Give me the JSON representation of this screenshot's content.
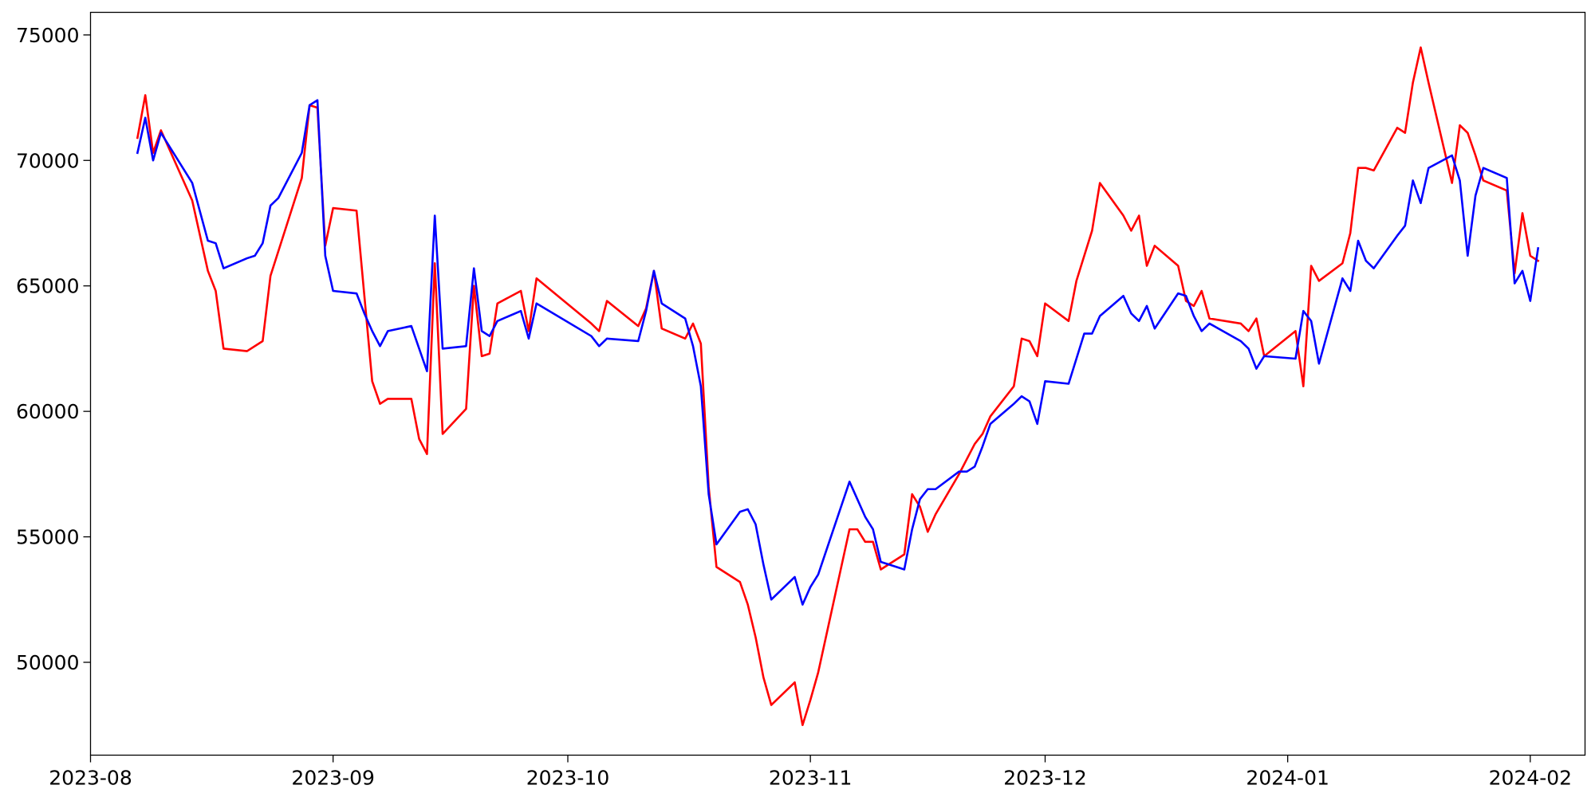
{
  "chart_data": {
    "type": "line",
    "title": "",
    "xlabel": "",
    "ylabel": "",
    "x_axis_type": "date",
    "xlim": [
      "2023-08-01",
      "2024-02-08"
    ],
    "ylim": [
      46300,
      75900
    ],
    "grid": false,
    "legend": "none",
    "x_ticks": [
      {
        "date": "2023-08-01",
        "label": "2023-08"
      },
      {
        "date": "2023-09-01",
        "label": "2023-09"
      },
      {
        "date": "2023-10-01",
        "label": "2023-10"
      },
      {
        "date": "2023-11-01",
        "label": "2023-11"
      },
      {
        "date": "2023-12-01",
        "label": "2023-12"
      },
      {
        "date": "2024-01-01",
        "label": "2024-01"
      },
      {
        "date": "2024-02-01",
        "label": "2024-02"
      }
    ],
    "y_ticks": [
      {
        "value": 50000,
        "label": "50000"
      },
      {
        "value": 55000,
        "label": "55000"
      },
      {
        "value": 60000,
        "label": "60000"
      },
      {
        "value": 65000,
        "label": "65000"
      },
      {
        "value": 70000,
        "label": "70000"
      },
      {
        "value": 75000,
        "label": "75000"
      }
    ],
    "series": [
      {
        "color": "#ff0000",
        "points": [
          [
            "2023-08-07",
            70900
          ],
          [
            "2023-08-08",
            72600
          ],
          [
            "2023-08-09",
            70300
          ],
          [
            "2023-08-10",
            71200
          ],
          [
            "2023-08-14",
            68400
          ],
          [
            "2023-08-16",
            65600
          ],
          [
            "2023-08-17",
            64800
          ],
          [
            "2023-08-18",
            62500
          ],
          [
            "2023-08-21",
            62400
          ],
          [
            "2023-08-23",
            62800
          ],
          [
            "2023-08-24",
            65400
          ],
          [
            "2023-08-28",
            69300
          ],
          [
            "2023-08-29",
            72200
          ],
          [
            "2023-08-30",
            72100
          ],
          [
            "2023-08-31",
            66600
          ],
          [
            "2023-09-01",
            68100
          ],
          [
            "2023-09-04",
            68000
          ],
          [
            "2023-09-06",
            61200
          ],
          [
            "2023-09-07",
            60300
          ],
          [
            "2023-09-08",
            60500
          ],
          [
            "2023-09-11",
            60500
          ],
          [
            "2023-09-12",
            58900
          ],
          [
            "2023-09-13",
            58300
          ],
          [
            "2023-09-14",
            65900
          ],
          [
            "2023-09-15",
            59100
          ],
          [
            "2023-09-18",
            60100
          ],
          [
            "2023-09-19",
            65000
          ],
          [
            "2023-09-20",
            62200
          ],
          [
            "2023-09-21",
            62300
          ],
          [
            "2023-09-22",
            64300
          ],
          [
            "2023-09-25",
            64800
          ],
          [
            "2023-09-26",
            63200
          ],
          [
            "2023-09-27",
            65300
          ],
          [
            "2023-10-04",
            63500
          ],
          [
            "2023-10-05",
            63200
          ],
          [
            "2023-10-06",
            64400
          ],
          [
            "2023-10-10",
            63400
          ],
          [
            "2023-10-11",
            64100
          ],
          [
            "2023-10-12",
            65600
          ],
          [
            "2023-10-13",
            63300
          ],
          [
            "2023-10-16",
            62900
          ],
          [
            "2023-10-17",
            63500
          ],
          [
            "2023-10-18",
            62700
          ],
          [
            "2023-10-19",
            57000
          ],
          [
            "2023-10-20",
            53800
          ],
          [
            "2023-10-23",
            53200
          ],
          [
            "2023-10-24",
            52300
          ],
          [
            "2023-10-25",
            51000
          ],
          [
            "2023-10-26",
            49400
          ],
          [
            "2023-10-27",
            48300
          ],
          [
            "2023-10-30",
            49200
          ],
          [
            "2023-10-31",
            47500
          ],
          [
            "2023-11-01",
            48500
          ],
          [
            "2023-11-02",
            49600
          ],
          [
            "2023-11-06",
            55300
          ],
          [
            "2023-11-07",
            55300
          ],
          [
            "2023-11-08",
            54800
          ],
          [
            "2023-11-09",
            54800
          ],
          [
            "2023-11-10",
            53700
          ],
          [
            "2023-11-13",
            54300
          ],
          [
            "2023-11-14",
            56700
          ],
          [
            "2023-11-15",
            56200
          ],
          [
            "2023-11-16",
            55200
          ],
          [
            "2023-11-17",
            55900
          ],
          [
            "2023-11-20",
            57500
          ],
          [
            "2023-11-21",
            58100
          ],
          [
            "2023-11-22",
            58700
          ],
          [
            "2023-11-23",
            59100
          ],
          [
            "2023-11-24",
            59800
          ],
          [
            "2023-11-27",
            61000
          ],
          [
            "2023-11-28",
            62900
          ],
          [
            "2023-11-29",
            62800
          ],
          [
            "2023-11-30",
            62200
          ],
          [
            "2023-12-01",
            64300
          ],
          [
            "2023-12-04",
            63600
          ],
          [
            "2023-12-05",
            65200
          ],
          [
            "2023-12-06",
            66200
          ],
          [
            "2023-12-07",
            67200
          ],
          [
            "2023-12-08",
            69100
          ],
          [
            "2023-12-11",
            67800
          ],
          [
            "2023-12-12",
            67200
          ],
          [
            "2023-12-13",
            67800
          ],
          [
            "2023-12-14",
            65800
          ],
          [
            "2023-12-15",
            66600
          ],
          [
            "2023-12-18",
            65800
          ],
          [
            "2023-12-19",
            64400
          ],
          [
            "2023-12-20",
            64200
          ],
          [
            "2023-12-21",
            64800
          ],
          [
            "2023-12-22",
            63700
          ],
          [
            "2023-12-26",
            63500
          ],
          [
            "2023-12-27",
            63200
          ],
          [
            "2023-12-28",
            63700
          ],
          [
            "2023-12-29",
            62200
          ],
          [
            "2024-01-02",
            63200
          ],
          [
            "2024-01-03",
            61000
          ],
          [
            "2024-01-04",
            65800
          ],
          [
            "2024-01-05",
            65200
          ],
          [
            "2024-01-08",
            65900
          ],
          [
            "2024-01-09",
            67100
          ],
          [
            "2024-01-10",
            69700
          ],
          [
            "2024-01-11",
            69700
          ],
          [
            "2024-01-12",
            69600
          ],
          [
            "2024-01-15",
            71300
          ],
          [
            "2024-01-16",
            71100
          ],
          [
            "2024-01-17",
            73100
          ],
          [
            "2024-01-18",
            74500
          ],
          [
            "2024-01-19",
            73100
          ],
          [
            "2024-01-22",
            69100
          ],
          [
            "2024-01-23",
            71400
          ],
          [
            "2024-01-24",
            71100
          ],
          [
            "2024-01-25",
            70200
          ],
          [
            "2024-01-26",
            69200
          ],
          [
            "2024-01-29",
            68800
          ],
          [
            "2024-01-30",
            65500
          ],
          [
            "2024-01-31",
            67900
          ],
          [
            "2024-02-01",
            66200
          ],
          [
            "2024-02-02",
            66000
          ]
        ]
      },
      {
        "color": "#0000ff",
        "points": [
          [
            "2023-08-07",
            70300
          ],
          [
            "2023-08-08",
            71700
          ],
          [
            "2023-08-09",
            70000
          ],
          [
            "2023-08-10",
            71100
          ],
          [
            "2023-08-14",
            69100
          ],
          [
            "2023-08-16",
            66800
          ],
          [
            "2023-08-17",
            66700
          ],
          [
            "2023-08-18",
            65700
          ],
          [
            "2023-08-21",
            66100
          ],
          [
            "2023-08-22",
            66200
          ],
          [
            "2023-08-23",
            66700
          ],
          [
            "2023-08-24",
            68200
          ],
          [
            "2023-08-25",
            68500
          ],
          [
            "2023-08-28",
            70300
          ],
          [
            "2023-08-29",
            72200
          ],
          [
            "2023-08-30",
            72400
          ],
          [
            "2023-08-31",
            66200
          ],
          [
            "2023-09-01",
            64800
          ],
          [
            "2023-09-04",
            64700
          ],
          [
            "2023-09-05",
            63900
          ],
          [
            "2023-09-06",
            63200
          ],
          [
            "2023-09-07",
            62600
          ],
          [
            "2023-09-08",
            63200
          ],
          [
            "2023-09-11",
            63400
          ],
          [
            "2023-09-13",
            61600
          ],
          [
            "2023-09-14",
            67800
          ],
          [
            "2023-09-15",
            62500
          ],
          [
            "2023-09-18",
            62600
          ],
          [
            "2023-09-19",
            65700
          ],
          [
            "2023-09-20",
            63200
          ],
          [
            "2023-09-21",
            63000
          ],
          [
            "2023-09-22",
            63600
          ],
          [
            "2023-09-25",
            64000
          ],
          [
            "2023-09-26",
            62900
          ],
          [
            "2023-09-27",
            64300
          ],
          [
            "2023-10-04",
            63000
          ],
          [
            "2023-10-05",
            62600
          ],
          [
            "2023-10-06",
            62900
          ],
          [
            "2023-10-10",
            62800
          ],
          [
            "2023-10-11",
            64000
          ],
          [
            "2023-10-12",
            65600
          ],
          [
            "2023-10-13",
            64300
          ],
          [
            "2023-10-16",
            63700
          ],
          [
            "2023-10-17",
            62600
          ],
          [
            "2023-10-18",
            61000
          ],
          [
            "2023-10-19",
            56700
          ],
          [
            "2023-10-20",
            54700
          ],
          [
            "2023-10-23",
            56000
          ],
          [
            "2023-10-24",
            56100
          ],
          [
            "2023-10-25",
            55500
          ],
          [
            "2023-10-26",
            53900
          ],
          [
            "2023-10-27",
            52500
          ],
          [
            "2023-10-30",
            53400
          ],
          [
            "2023-10-31",
            52300
          ],
          [
            "2023-11-01",
            53000
          ],
          [
            "2023-11-02",
            53500
          ],
          [
            "2023-11-06",
            57200
          ],
          [
            "2023-11-07",
            56500
          ],
          [
            "2023-11-08",
            55800
          ],
          [
            "2023-11-09",
            55300
          ],
          [
            "2023-11-10",
            54000
          ],
          [
            "2023-11-13",
            53700
          ],
          [
            "2023-11-14",
            55300
          ],
          [
            "2023-11-15",
            56500
          ],
          [
            "2023-11-16",
            56900
          ],
          [
            "2023-11-17",
            56900
          ],
          [
            "2023-11-20",
            57600
          ],
          [
            "2023-11-21",
            57600
          ],
          [
            "2023-11-22",
            57800
          ],
          [
            "2023-11-23",
            58600
          ],
          [
            "2023-11-24",
            59500
          ],
          [
            "2023-11-27",
            60300
          ],
          [
            "2023-11-28",
            60600
          ],
          [
            "2023-11-29",
            60400
          ],
          [
            "2023-11-30",
            59500
          ],
          [
            "2023-12-01",
            61200
          ],
          [
            "2023-12-04",
            61100
          ],
          [
            "2023-12-05",
            62100
          ],
          [
            "2023-12-06",
            63100
          ],
          [
            "2023-12-07",
            63100
          ],
          [
            "2023-12-08",
            63800
          ],
          [
            "2023-12-11",
            64600
          ],
          [
            "2023-12-12",
            63900
          ],
          [
            "2023-12-13",
            63600
          ],
          [
            "2023-12-14",
            64200
          ],
          [
            "2023-12-15",
            63300
          ],
          [
            "2023-12-18",
            64700
          ],
          [
            "2023-12-19",
            64600
          ],
          [
            "2023-12-20",
            63800
          ],
          [
            "2023-12-21",
            63200
          ],
          [
            "2023-12-22",
            63500
          ],
          [
            "2023-12-26",
            62800
          ],
          [
            "2023-12-27",
            62500
          ],
          [
            "2023-12-28",
            61700
          ],
          [
            "2023-12-29",
            62200
          ],
          [
            "2024-01-02",
            62100
          ],
          [
            "2024-01-03",
            64000
          ],
          [
            "2024-01-04",
            63600
          ],
          [
            "2024-01-05",
            61900
          ],
          [
            "2024-01-08",
            65300
          ],
          [
            "2024-01-09",
            64800
          ],
          [
            "2024-01-10",
            66800
          ],
          [
            "2024-01-11",
            66000
          ],
          [
            "2024-01-12",
            65700
          ],
          [
            "2024-01-15",
            67000
          ],
          [
            "2024-01-16",
            67400
          ],
          [
            "2024-01-17",
            69200
          ],
          [
            "2024-01-18",
            68300
          ],
          [
            "2024-01-19",
            69700
          ],
          [
            "2024-01-22",
            70200
          ],
          [
            "2024-01-23",
            69200
          ],
          [
            "2024-01-24",
            66200
          ],
          [
            "2024-01-25",
            68600
          ],
          [
            "2024-01-26",
            69700
          ],
          [
            "2024-01-29",
            69300
          ],
          [
            "2024-01-30",
            65100
          ],
          [
            "2024-01-31",
            65600
          ],
          [
            "2024-02-01",
            64400
          ],
          [
            "2024-02-02",
            66500
          ]
        ]
      }
    ]
  }
}
